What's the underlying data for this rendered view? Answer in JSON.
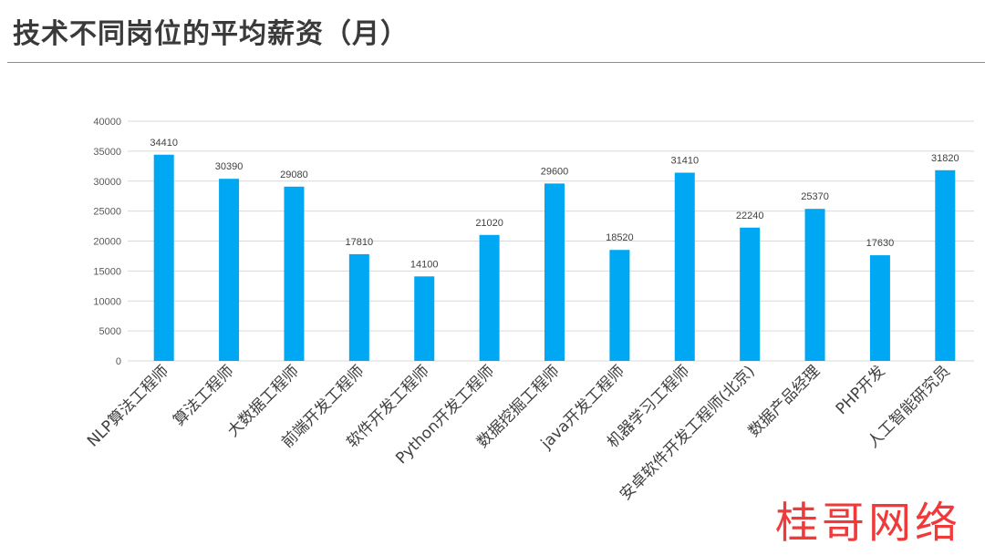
{
  "page": {
    "title": "技术不同岗位的平均薪资（月）",
    "watermark": "桂哥网络"
  },
  "colors": {
    "bar": "#00a8f3",
    "grid": "#d9d9d9",
    "tick_text": "#595959",
    "value_text": "#404040",
    "category_text": "#404040"
  },
  "chart_data": {
    "type": "bar",
    "categories": [
      "NLP算法工程师",
      "算法工程师",
      "大数据工程师",
      "前端开发工程师",
      "软件开发工程师",
      "Python开发工程师",
      "数据挖掘工程师",
      "java开发工程师",
      "机器学习工程师",
      "安卓软件开发工程师(北京)",
      "数据产品经理",
      "PHP开发",
      "人工智能研究员"
    ],
    "values": [
      34410,
      30390,
      29080,
      17810,
      14100,
      21020,
      29600,
      18520,
      31410,
      22240,
      25370,
      17630,
      31820
    ],
    "y_ticks": [
      "0",
      "5000",
      "10000",
      "15000",
      "20000",
      "25000",
      "30000",
      "35000",
      "40000"
    ],
    "ylim": [
      0,
      40000
    ],
    "grid": true,
    "legend": "none"
  }
}
